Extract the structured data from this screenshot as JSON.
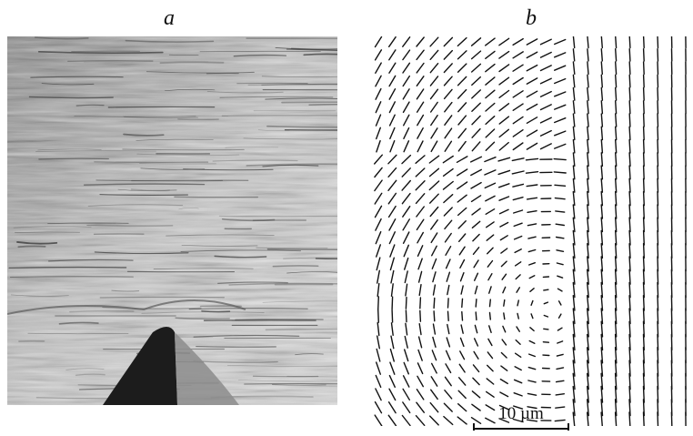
{
  "panels": [
    {
      "id": "a",
      "label": "a"
    },
    {
      "id": "b",
      "label": "b"
    }
  ],
  "scale_bar": {
    "label": "10 µm"
  },
  "colors": {
    "background": "#ffffff",
    "ink": "#111111",
    "micrograph_base": "#b4b4b4",
    "indent_dark": "#1a1a1a"
  }
}
